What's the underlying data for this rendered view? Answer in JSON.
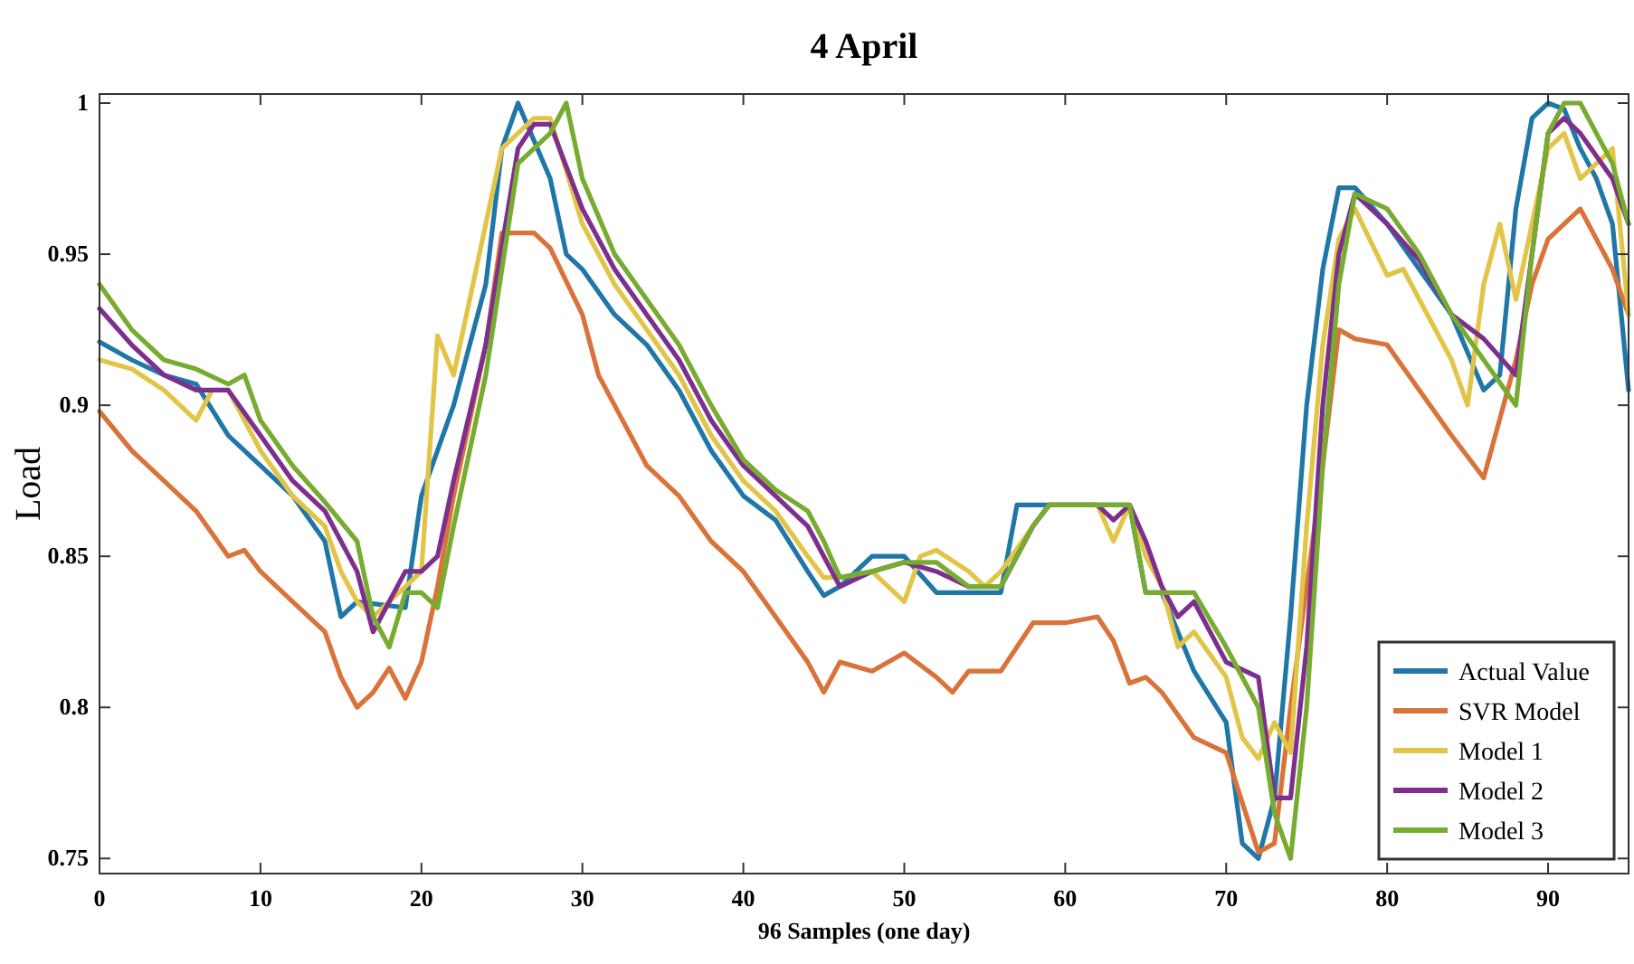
{
  "chart_data": {
    "type": "line",
    "title": "4 April",
    "xlabel": "96 Samples (one day)",
    "ylabel": "Load",
    "xlim": [
      0,
      95
    ],
    "ylim": [
      0.745,
      1.003
    ],
    "xticks": [
      0,
      10,
      20,
      30,
      40,
      50,
      60,
      70,
      80,
      90
    ],
    "yticks": [
      0.75,
      0.8,
      0.85,
      0.9,
      0.95,
      1
    ],
    "grid": false,
    "legend": "bottom right",
    "marker": "none",
    "line_style": "solid",
    "series": [
      {
        "name": "Actual Value",
        "color": "#1f77a8",
        "x": [
          0,
          2,
          4,
          6,
          8,
          10,
          12,
          14,
          15,
          16,
          19,
          20,
          22,
          24,
          25,
          26,
          28,
          29,
          30,
          32,
          34,
          36,
          38,
          40,
          42,
          44,
          45,
          46,
          48,
          50,
          52,
          54,
          56,
          57,
          64,
          65,
          66,
          68,
          70,
          71,
          72,
          73,
          74,
          75,
          76,
          77,
          78,
          80,
          82,
          84,
          86,
          87,
          88,
          89,
          90,
          91,
          92,
          93,
          94,
          95
        ],
        "values": [
          0.921,
          0.915,
          0.91,
          0.907,
          0.89,
          0.88,
          0.87,
          0.855,
          0.83,
          0.835,
          0.833,
          0.87,
          0.9,
          0.94,
          0.985,
          1.0,
          0.975,
          0.95,
          0.945,
          0.93,
          0.92,
          0.905,
          0.885,
          0.87,
          0.862,
          0.845,
          0.837,
          0.84,
          0.85,
          0.85,
          0.838,
          0.838,
          0.838,
          0.867,
          0.867,
          0.838,
          0.838,
          0.812,
          0.795,
          0.755,
          0.75,
          0.77,
          0.83,
          0.9,
          0.945,
          0.972,
          0.972,
          0.96,
          0.945,
          0.93,
          0.905,
          0.91,
          0.965,
          0.995,
          1.0,
          0.998,
          0.985,
          0.975,
          0.96,
          0.905
        ]
      },
      {
        "name": "SVR Model",
        "color": "#d9733a",
        "x": [
          0,
          2,
          4,
          6,
          8,
          9,
          10,
          12,
          14,
          15,
          16,
          17,
          18,
          19,
          20,
          21,
          22,
          24,
          25,
          27,
          28,
          30,
          31,
          32,
          34,
          36,
          38,
          40,
          42,
          44,
          45,
          46,
          48,
          50,
          52,
          53,
          54,
          56,
          58,
          60,
          62,
          63,
          64,
          65,
          66,
          68,
          70,
          72,
          73,
          74,
          76,
          77,
          78,
          80,
          82,
          84,
          86,
          88,
          89,
          90,
          92,
          94,
          95
        ],
        "values": [
          0.898,
          0.885,
          0.875,
          0.865,
          0.85,
          0.852,
          0.845,
          0.835,
          0.825,
          0.81,
          0.8,
          0.805,
          0.813,
          0.803,
          0.815,
          0.84,
          0.87,
          0.92,
          0.957,
          0.957,
          0.952,
          0.93,
          0.91,
          0.9,
          0.88,
          0.87,
          0.855,
          0.845,
          0.83,
          0.815,
          0.805,
          0.815,
          0.812,
          0.818,
          0.81,
          0.805,
          0.812,
          0.812,
          0.828,
          0.828,
          0.83,
          0.822,
          0.808,
          0.81,
          0.805,
          0.79,
          0.785,
          0.752,
          0.755,
          0.8,
          0.88,
          0.925,
          0.922,
          0.92,
          0.905,
          0.89,
          0.876,
          0.915,
          0.94,
          0.955,
          0.965,
          0.945,
          0.93
        ]
      },
      {
        "name": "Model 1",
        "color": "#e2c447",
        "x": [
          0,
          2,
          4,
          6,
          7,
          8,
          10,
          12,
          14,
          15,
          16,
          17,
          18,
          19,
          20,
          21,
          22,
          24,
          25,
          27,
          28,
          30,
          32,
          34,
          36,
          38,
          40,
          42,
          44,
          45,
          46,
          48,
          50,
          51,
          52,
          54,
          55,
          56,
          58,
          59,
          62,
          63,
          64,
          65,
          66,
          67,
          68,
          70,
          71,
          72,
          73,
          74,
          75,
          76,
          77,
          78,
          80,
          81,
          82,
          84,
          85,
          86,
          87,
          88,
          90,
          91,
          92,
          93,
          94,
          95
        ],
        "values": [
          0.915,
          0.912,
          0.905,
          0.895,
          0.905,
          0.905,
          0.885,
          0.87,
          0.86,
          0.845,
          0.835,
          0.83,
          0.835,
          0.84,
          0.845,
          0.923,
          0.91,
          0.96,
          0.985,
          0.995,
          0.995,
          0.96,
          0.94,
          0.925,
          0.91,
          0.89,
          0.875,
          0.865,
          0.85,
          0.843,
          0.843,
          0.845,
          0.835,
          0.85,
          0.852,
          0.845,
          0.84,
          0.845,
          0.86,
          0.867,
          0.867,
          0.855,
          0.867,
          0.85,
          0.84,
          0.82,
          0.825,
          0.81,
          0.79,
          0.783,
          0.795,
          0.785,
          0.86,
          0.92,
          0.955,
          0.965,
          0.943,
          0.945,
          0.935,
          0.915,
          0.9,
          0.94,
          0.96,
          0.935,
          0.985,
          0.99,
          0.975,
          0.98,
          0.985,
          0.93
        ]
      },
      {
        "name": "Model 2",
        "color": "#7e2f8e",
        "x": [
          0,
          2,
          4,
          6,
          8,
          10,
          12,
          14,
          16,
          17,
          18,
          19,
          20,
          21,
          22,
          24,
          26,
          27,
          28,
          30,
          32,
          34,
          36,
          38,
          40,
          42,
          44,
          45,
          46,
          48,
          50,
          52,
          54,
          56,
          58,
          59,
          62,
          63,
          64,
          65,
          66,
          67,
          68,
          70,
          72,
          73,
          74,
          75,
          76,
          77,
          78,
          80,
          82,
          84,
          86,
          88,
          90,
          91,
          92,
          94,
          95
        ],
        "values": [
          0.932,
          0.92,
          0.91,
          0.905,
          0.905,
          0.89,
          0.875,
          0.865,
          0.845,
          0.825,
          0.835,
          0.845,
          0.845,
          0.85,
          0.875,
          0.92,
          0.985,
          0.993,
          0.993,
          0.965,
          0.945,
          0.93,
          0.915,
          0.895,
          0.88,
          0.87,
          0.86,
          0.85,
          0.84,
          0.845,
          0.848,
          0.845,
          0.84,
          0.84,
          0.86,
          0.867,
          0.867,
          0.862,
          0.867,
          0.855,
          0.84,
          0.83,
          0.835,
          0.815,
          0.81,
          0.77,
          0.77,
          0.82,
          0.9,
          0.95,
          0.97,
          0.96,
          0.948,
          0.93,
          0.922,
          0.91,
          0.99,
          0.995,
          0.99,
          0.975,
          0.96
        ]
      },
      {
        "name": "Model 3",
        "color": "#77ac30",
        "x": [
          0,
          2,
          4,
          6,
          8,
          9,
          10,
          12,
          14,
          16,
          17,
          18,
          19,
          20,
          21,
          22,
          24,
          26,
          28,
          29,
          30,
          32,
          34,
          36,
          38,
          40,
          42,
          44,
          45,
          46,
          48,
          50,
          52,
          54,
          56,
          58,
          59,
          64,
          65,
          68,
          70,
          72,
          73,
          74,
          75,
          76,
          77,
          78,
          80,
          82,
          84,
          86,
          88,
          89,
          90,
          91,
          92,
          94,
          95
        ],
        "values": [
          0.94,
          0.925,
          0.915,
          0.912,
          0.907,
          0.91,
          0.895,
          0.88,
          0.868,
          0.855,
          0.83,
          0.82,
          0.838,
          0.838,
          0.833,
          0.86,
          0.91,
          0.98,
          0.99,
          1.0,
          0.975,
          0.95,
          0.935,
          0.92,
          0.9,
          0.882,
          0.872,
          0.865,
          0.855,
          0.843,
          0.845,
          0.848,
          0.848,
          0.84,
          0.84,
          0.86,
          0.867,
          0.867,
          0.838,
          0.838,
          0.82,
          0.8,
          0.765,
          0.75,
          0.8,
          0.88,
          0.94,
          0.97,
          0.965,
          0.95,
          0.93,
          0.915,
          0.9,
          0.95,
          0.99,
          1.0,
          1.0,
          0.98,
          0.96
        ]
      }
    ]
  }
}
